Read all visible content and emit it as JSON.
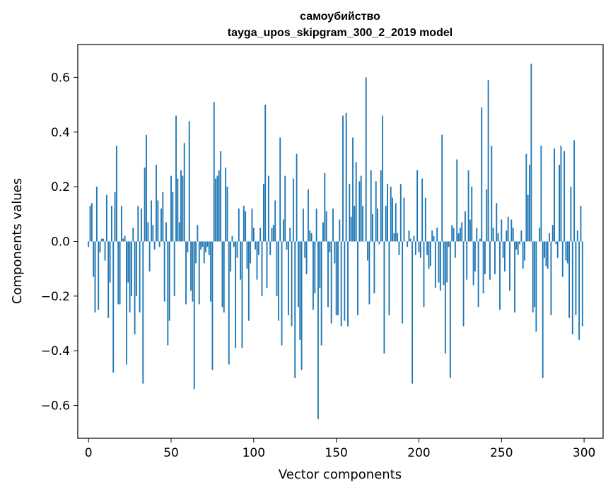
{
  "chart_data": {
    "type": "bar",
    "title": "самоубийство",
    "subtitle": "tayga_upos_skipgram_300_2_2019 model",
    "xlabel": "Vector components",
    "ylabel": "Components values",
    "xlim": [
      -6.5,
      311.5
    ],
    "ylim": [
      -0.72,
      0.72
    ],
    "xticks": [
      0,
      50,
      100,
      150,
      200,
      250,
      300
    ],
    "yticks": [
      -0.6,
      -0.4,
      -0.2,
      0.0,
      0.2,
      0.4,
      0.6
    ],
    "xtick_labels": [
      "0",
      "50",
      "100",
      "150",
      "200",
      "250",
      "300"
    ],
    "ytick_labels": [
      "−0.6",
      "−0.4",
      "−0.2",
      "0.0",
      "0.2",
      "0.4",
      "0.6"
    ],
    "grid": false,
    "bar_color": "#1f77b4",
    "values": [
      -0.02,
      0.13,
      0.14,
      -0.13,
      -0.26,
      0.2,
      -0.25,
      -0.04,
      0.01,
      0.01,
      -0.07,
      0.17,
      -0.28,
      -0.15,
      0.13,
      -0.48,
      0.18,
      0.35,
      -0.23,
      -0.23,
      0.13,
      0.01,
      0.02,
      -0.45,
      -0.15,
      -0.26,
      -0.2,
      0.05,
      -0.34,
      -0.2,
      0.13,
      -0.26,
      0.12,
      -0.52,
      0.27,
      0.39,
      0.07,
      -0.11,
      0.15,
      0.06,
      -0.03,
      0.28,
      0.15,
      -0.02,
      0.12,
      0.18,
      -0.22,
      0.07,
      -0.38,
      -0.29,
      0.24,
      0.18,
      -0.2,
      0.46,
      0.23,
      0.07,
      0.26,
      0.24,
      0.36,
      -0.23,
      -0.04,
      0.44,
      -0.18,
      -0.22,
      -0.54,
      -0.08,
      0.06,
      -0.23,
      -0.03,
      -0.02,
      -0.08,
      -0.04,
      -0.02,
      -0.05,
      -0.22,
      -0.47,
      0.51,
      0.23,
      0.24,
      0.26,
      0.33,
      -0.24,
      -0.26,
      0.27,
      0.2,
      -0.45,
      -0.11,
      0.02,
      -0.02,
      -0.39,
      -0.06,
      0.12,
      -0.14,
      -0.39,
      0.13,
      0.11,
      -0.1,
      -0.29,
      -0.08,
      0.12,
      0.05,
      -0.03,
      -0.14,
      -0.05,
      0.05,
      -0.2,
      0.21,
      0.5,
      -0.17,
      0.24,
      -0.05,
      0.05,
      0.06,
      0.15,
      -0.2,
      -0.29,
      0.38,
      -0.38,
      0.08,
      0.24,
      -0.03,
      -0.27,
      0.05,
      -0.31,
      0.23,
      -0.5,
      0.32,
      -0.24,
      -0.36,
      -0.47,
      0.12,
      -0.06,
      -0.12,
      0.19,
      0.04,
      0.03,
      -0.25,
      -0.19,
      0.12,
      -0.65,
      -0.17,
      -0.38,
      0.07,
      0.25,
      0.11,
      -0.24,
      -0.04,
      -0.3,
      0.12,
      -0.08,
      -0.27,
      -0.27,
      0.08,
      -0.31,
      0.46,
      -0.29,
      0.47,
      -0.31,
      0.21,
      0.09,
      0.38,
      0.13,
      0.29,
      -0.27,
      0.22,
      0.24,
      0.13,
      0.0,
      0.6,
      -0.07,
      -0.23,
      0.26,
      0.1,
      -0.19,
      0.22,
      0.12,
      -0.01,
      0.26,
      0.46,
      -0.41,
      0.13,
      0.21,
      -0.27,
      0.2,
      0.16,
      0.03,
      0.14,
      0.03,
      -0.05,
      0.21,
      -0.3,
      0.16,
      0.0,
      -0.02,
      0.04,
      0.01,
      -0.52,
      0.02,
      -0.05,
      0.26,
      -0.04,
      -0.06,
      0.23,
      -0.24,
      0.16,
      -0.05,
      -0.1,
      -0.09,
      0.04,
      0.02,
      -0.17,
      0.05,
      -0.15,
      -0.18,
      0.39,
      -0.16,
      -0.41,
      -0.15,
      -0.02,
      -0.5,
      0.06,
      0.05,
      -0.06,
      0.3,
      0.03,
      0.05,
      0.07,
      -0.31,
      0.11,
      -0.14,
      0.26,
      0.08,
      0.2,
      -0.16,
      -0.11,
      0.05,
      -0.24,
      0.01,
      0.49,
      -0.19,
      -0.12,
      0.19,
      0.59,
      -0.14,
      0.35,
      0.05,
      -0.12,
      0.14,
      0.03,
      -0.25,
      0.08,
      -0.06,
      -0.11,
      0.04,
      0.09,
      -0.18,
      0.08,
      0.05,
      -0.26,
      -0.03,
      -0.05,
      -0.01,
      0.04,
      -0.1,
      -0.07,
      0.32,
      0.17,
      0.28,
      0.65,
      -0.26,
      -0.24,
      -0.33,
      0.0,
      0.05,
      0.35,
      -0.5,
      -0.06,
      -0.09,
      -0.1,
      0.03,
      -0.27,
      0.06,
      0.34,
      -0.01,
      -0.06,
      0.28,
      0.35,
      -0.13,
      0.33,
      -0.07,
      -0.08,
      -0.28,
      0.2,
      -0.34,
      0.37,
      -0.27,
      0.04,
      -0.36,
      0.13,
      -0.31
    ]
  }
}
